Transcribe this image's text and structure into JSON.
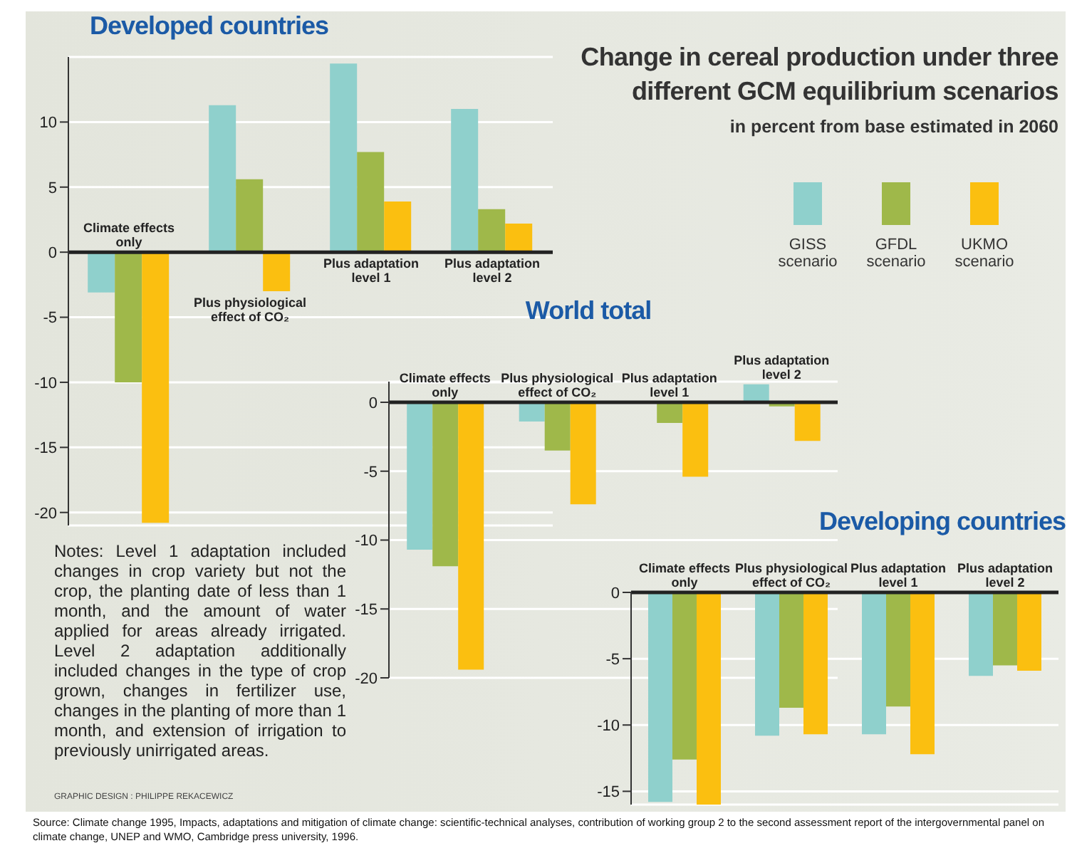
{
  "chart_data": [
    {
      "type": "bar",
      "title": "Developed countries",
      "categories": [
        "Climate effects only",
        "Plus physiological effect of CO₂",
        "Plus adaptation level 1",
        "Plus adaptation level 2"
      ],
      "series": [
        {
          "name": "GISS scenario",
          "color": "#8fd0cc",
          "values": [
            -3.1,
            11.3,
            14.5,
            11.0
          ]
        },
        {
          "name": "GFDL scenario",
          "color": "#9fb84a",
          "values": [
            -10.0,
            5.6,
            7.7,
            3.3
          ]
        },
        {
          "name": "UKMO scenario",
          "color": "#fbbf10",
          "values": [
            -20.8,
            -3.0,
            3.9,
            2.2
          ]
        }
      ],
      "ylim": [
        -21,
        15
      ],
      "yticks": [
        -20,
        -15,
        -10,
        -5,
        0,
        5,
        10
      ],
      "grid": "y",
      "legend": "top right"
    },
    {
      "type": "other",
      "title": "Change in cereal production under three different GCM equilibrium scenarios",
      "subtitle": "in percent from base estimated in 2060",
      "annotations": [
        "Notes: Level 1 adaptation included changes in crop variety but not the crop, the planting date of less than 1 month, and the amount of water applied for areas already irrigated. Level 2 adaptation additionally included changes in the type of crop grown, changes in fertilizer use, changes in the planting of more than 1 month, and extension of irrigation to previously unirrigated areas.",
        "GRAPHIC DESIGN : PHILIPPE REKACEWICZ",
        "Source: Climate change 1995, Impacts, adaptations and mitigation of climate change: scientific-technical analyses, contribution of working group 2 to the second assessment report of the intergovernmental panel on climate change, UNEP and WMO, Cambridge press university,  1996."
      ]
    },
    {
      "type": "bar",
      "title": "World total",
      "categories": [
        "Climate effects only",
        "Plus physiological effect of CO₂",
        "Plus adaptation level 1",
        "Plus adaptation level 2"
      ],
      "series": [
        {
          "color": "#8fd0cc",
          "values": [
            -10.7,
            -1.4,
            0,
            1.3
          ]
        },
        {
          "color": "#9fb84a",
          "values": [
            -11.9,
            -3.5,
            -1.5,
            -0.3
          ]
        },
        {
          "color": "#fbbf10",
          "values": [
            -19.4,
            -7.4,
            -5.4,
            -2.8
          ]
        }
      ],
      "ylim": [
        -20,
        1.5
      ],
      "yticks": [
        -20,
        -15,
        -10,
        -5,
        0
      ],
      "grid": "y"
    },
    {
      "type": "bar",
      "title": "Developing countries",
      "categories": [
        "Climate effects only",
        "Plus physiological effect of CO₂",
        "Plus adaptation level 1",
        "Plus adaptation level 2"
      ],
      "series": [
        {
          "color": "#8fd0cc",
          "values": [
            -15.8,
            -10.8,
            -10.7,
            -6.3
          ]
        },
        {
          "color": "#9fb84a",
          "values": [
            -12.6,
            -8.7,
            -8.6,
            -5.5
          ]
        },
        {
          "color": "#fbbf10",
          "values": [
            -16,
            -10.7,
            -12.2,
            -5.9
          ]
        }
      ],
      "ylim": [
        -16,
        0
      ],
      "yticks": [
        -15,
        -10,
        -5,
        0
      ],
      "grid": "y"
    }
  ]
}
